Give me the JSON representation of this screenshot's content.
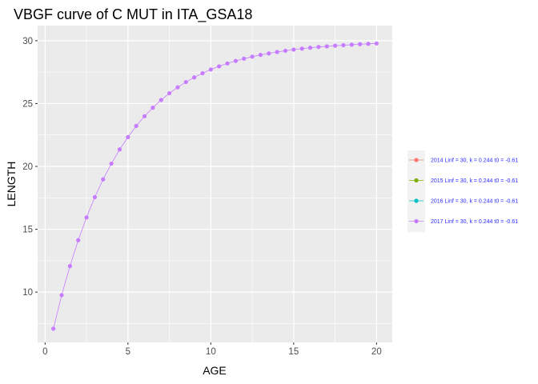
{
  "chart_data": {
    "type": "line",
    "title": "VBGF curve of C MUT in ITA_GSA18",
    "xlabel": "AGE",
    "ylabel": "LENGTH",
    "xlim": [
      -0.45,
      20.95
    ],
    "ylim": [
      6.0,
      31.2
    ],
    "xticks": [
      0,
      5,
      10,
      15,
      20
    ],
    "yticks": [
      10,
      15,
      20,
      25,
      30
    ],
    "grid": true,
    "legend_position": "right",
    "series": [
      {
        "name": "2014 Linf = 30, k = 0.244 t0 = -0.61",
        "color": "#F8766D",
        "x": [],
        "y": []
      },
      {
        "name": "2015 Linf = 30, k = 0.244 t0 = -0.61",
        "color": "#7CAE00",
        "x": [],
        "y": []
      },
      {
        "name": "2016 Linf = 30, k = 0.244 t0 = -0.61",
        "color": "#00BFC4",
        "x": [],
        "y": []
      },
      {
        "name": "2017 Linf = 30, k = 0.244 t0 = -0.61",
        "color": "#C77CFF",
        "x": [
          0.5,
          1,
          1.5,
          2,
          2.5,
          3,
          3.5,
          4,
          4.5,
          5,
          5.5,
          6,
          6.5,
          7,
          7.5,
          8,
          8.5,
          9,
          9.5,
          10,
          10.5,
          11,
          11.5,
          12,
          12.5,
          13,
          13.5,
          14,
          14.5,
          15,
          15.5,
          16,
          16.5,
          17,
          17.5,
          18,
          18.5,
          19,
          19.5,
          20
        ],
        "y": [
          7.09,
          9.76,
          12.07,
          14.13,
          15.94,
          17.55,
          18.97,
          20.22,
          21.35,
          22.33,
          23.22,
          23.99,
          24.67,
          25.28,
          25.82,
          26.29,
          26.71,
          27.08,
          27.41,
          27.71,
          27.96,
          28.19,
          28.39,
          28.57,
          28.73,
          28.87,
          28.99,
          29.1,
          29.2,
          29.29,
          29.37,
          29.44,
          29.5,
          29.55,
          29.6,
          29.64,
          29.68,
          29.72,
          29.75,
          29.78
        ]
      }
    ]
  }
}
